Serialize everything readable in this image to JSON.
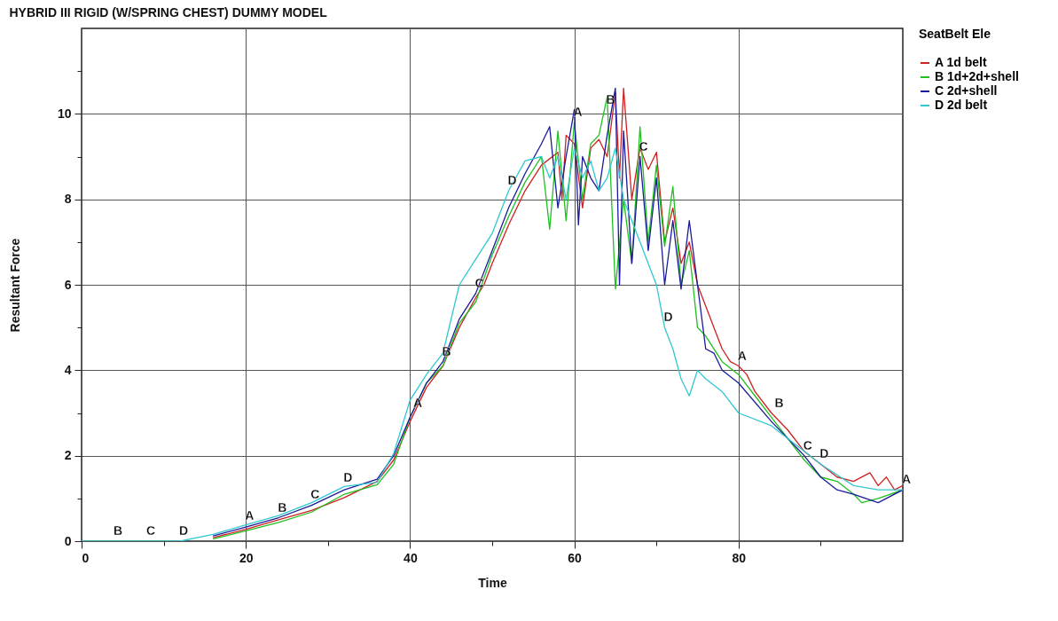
{
  "chart_data": {
    "type": "line",
    "title": "HYBRID III RIGID (W/SPRING CHEST) DUMMY MODEL",
    "xlabel": "Time",
    "ylabel": "Resultant Force",
    "legend_title": "SeatBelt Ele",
    "xlim": [
      0,
      100
    ],
    "ylim": [
      0,
      12
    ],
    "xticks": [
      0,
      {
        "value": 10,
        "label": null
      },
      20,
      {
        "value": 30,
        "label": null
      },
      40,
      {
        "value": 50,
        "label": null
      },
      60,
      {
        "value": 70,
        "label": null
      },
      80,
      {
        "value": 90,
        "label": null
      }
    ],
    "yticks": [
      0,
      {
        "value": 1,
        "label": null
      },
      2,
      {
        "value": 3,
        "label": null
      },
      4,
      {
        "value": 5,
        "label": null
      },
      6,
      {
        "value": 7,
        "label": null
      },
      8,
      {
        "value": 9,
        "label": null
      },
      10,
      {
        "value": 11,
        "label": null
      }
    ],
    "grid": true,
    "legend": "top right",
    "series": [
      {
        "name": "A 1d belt",
        "color": "#d02020",
        "x": [
          16,
          20,
          24,
          28,
          32,
          36,
          38,
          40,
          42,
          44,
          46,
          48,
          49,
          50,
          52,
          54,
          56,
          58,
          58.5,
          59,
          60,
          61,
          62,
          63,
          64,
          65,
          65.5,
          66,
          67,
          68,
          69,
          70,
          71,
          72,
          73,
          74,
          75,
          76,
          77,
          78,
          79,
          80,
          81,
          82,
          84,
          86,
          88,
          90,
          92,
          94,
          96,
          97,
          98,
          99,
          100
        ],
        "values": [
          0.08,
          0.28,
          0.5,
          0.72,
          1.02,
          1.4,
          1.9,
          2.8,
          3.6,
          4.1,
          5,
          5.7,
          6,
          6.5,
          7.4,
          8.2,
          8.8,
          9.1,
          8,
          9.5,
          9.3,
          7.8,
          9.2,
          9.4,
          9,
          10.5,
          8.5,
          10.6,
          8,
          9.2,
          8.7,
          9.1,
          7,
          7.8,
          6.5,
          7,
          6,
          5.5,
          5,
          4.5,
          4.2,
          4.1,
          3.9,
          3.5,
          3,
          2.6,
          2.1,
          1.8,
          1.5,
          1.4,
          1.6,
          1.3,
          1.5,
          1.2,
          1.3
        ]
      },
      {
        "name": "B 1d+2d+shell",
        "color": "#20c020",
        "x": [
          16,
          20,
          24,
          28,
          32,
          36,
          38,
          40,
          42,
          44,
          46,
          48,
          50,
          52,
          54,
          56,
          57,
          58,
          59,
          60,
          61,
          62,
          63,
          64,
          65,
          66,
          67,
          68,
          69,
          70,
          71,
          72,
          73,
          74,
          75,
          76,
          78,
          80,
          82,
          84,
          86,
          88,
          90,
          92,
          94,
          95,
          97,
          100
        ],
        "values": [
          0.05,
          0.24,
          0.44,
          0.68,
          1.1,
          1.32,
          1.8,
          2.9,
          3.7,
          4.1,
          5.1,
          5.6,
          6.7,
          7.6,
          8.4,
          9,
          7.3,
          9.6,
          7.5,
          9.8,
          8,
          9.3,
          9.5,
          10.4,
          5.9,
          8,
          6.5,
          9.7,
          7,
          8.8,
          6.9,
          8.3,
          6,
          6.8,
          5,
          4.8,
          4.2,
          3.9,
          3.4,
          2.9,
          2.4,
          1.9,
          1.5,
          1.4,
          1.1,
          0.9,
          1,
          1.2
        ]
      },
      {
        "name": "C 2d+shell",
        "color": "#1a1a9a",
        "x": [
          16,
          20,
          24,
          28,
          32,
          36,
          38,
          40,
          42,
          44,
          46,
          48,
          50,
          52,
          54,
          56,
          57,
          58,
          59,
          60,
          60.5,
          61,
          62,
          63,
          64,
          65,
          65.5,
          66,
          67,
          68,
          69,
          70,
          71,
          72,
          73,
          74,
          75,
          76,
          77,
          78,
          80,
          84,
          88,
          90,
          92,
          94,
          97,
          100
        ],
        "values": [
          0.12,
          0.33,
          0.55,
          0.84,
          1.2,
          1.45,
          2,
          2.9,
          3.7,
          4.2,
          5.2,
          5.8,
          6.8,
          7.8,
          8.6,
          9.3,
          9.7,
          7.8,
          9,
          10.1,
          7.4,
          9,
          8.5,
          8.2,
          9.5,
          10.6,
          6,
          9.6,
          6.5,
          9,
          6.8,
          8.5,
          6,
          7.5,
          5.9,
          7.5,
          6,
          4.5,
          4.4,
          4,
          3.7,
          2.8,
          2,
          1.5,
          1.2,
          1.1,
          0.9,
          1.2
        ]
      },
      {
        "name": "D 2d belt",
        "color": "#30c8d0",
        "x": [
          0,
          12,
          16,
          20,
          24,
          28,
          32,
          36,
          38,
          40,
          42,
          44,
          46,
          48,
          50,
          52,
          54,
          56,
          57,
          58,
          59,
          60,
          61,
          62,
          63,
          64,
          65,
          66,
          67,
          68,
          69,
          70,
          71,
          72,
          73,
          74,
          75,
          76,
          78,
          80,
          84,
          88,
          90,
          94,
          97,
          100
        ],
        "values": [
          0,
          0,
          0.16,
          0.38,
          0.6,
          0.9,
          1.28,
          1.38,
          2.05,
          3.3,
          3.9,
          4.4,
          6,
          6.6,
          7.2,
          8.2,
          8.9,
          9,
          8.5,
          9,
          8,
          9.2,
          8.5,
          8.9,
          8.2,
          8.5,
          9.2,
          8,
          7.5,
          7,
          6.5,
          6,
          5,
          4.5,
          3.8,
          3.4,
          4,
          3.8,
          3.5,
          3,
          2.7,
          2.1,
          1.8,
          1.3,
          1.2,
          1.2
        ]
      }
    ],
    "annotations": [
      {
        "text": "B",
        "x": 4,
        "y": 0
      },
      {
        "text": "C",
        "x": 8,
        "y": 0
      },
      {
        "text": "D",
        "x": 12,
        "y": 0
      },
      {
        "text": "A",
        "x": 20,
        "y": 0.35
      },
      {
        "text": "B",
        "x": 24,
        "y": 0.55
      },
      {
        "text": "C",
        "x": 28,
        "y": 0.85
      },
      {
        "text": "D",
        "x": 32,
        "y": 1.25
      },
      {
        "text": "A",
        "x": 40.5,
        "y": 3
      },
      {
        "text": "B",
        "x": 44,
        "y": 4.2
      },
      {
        "text": "C",
        "x": 48,
        "y": 5.8
      },
      {
        "text": "D",
        "x": 52,
        "y": 8.2
      },
      {
        "text": "A",
        "x": 60,
        "y": 9.8
      },
      {
        "text": "B",
        "x": 64,
        "y": 10.1
      },
      {
        "text": "C",
        "x": 68,
        "y": 9
      },
      {
        "text": "D",
        "x": 71,
        "y": 5
      },
      {
        "text": "A",
        "x": 80,
        "y": 4.1
      },
      {
        "text": "B",
        "x": 84.5,
        "y": 3
      },
      {
        "text": "C",
        "x": 88,
        "y": 2
      },
      {
        "text": "D",
        "x": 90,
        "y": 1.8
      },
      {
        "text": "A",
        "x": 100,
        "y": 1.2
      }
    ]
  }
}
